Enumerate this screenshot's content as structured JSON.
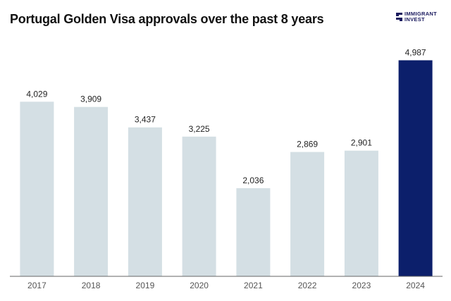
{
  "chart_data": {
    "type": "bar",
    "title": "Portugal Golden Visa approvals over the past 8 years",
    "xlabel": "",
    "ylabel": "",
    "categories": [
      "2017",
      "2018",
      "2019",
      "2020",
      "2021",
      "2022",
      "2023",
      "2024"
    ],
    "values": [
      4029,
      3909,
      3437,
      3225,
      2036,
      2869,
      2901,
      4987
    ],
    "value_labels": [
      "4,029",
      "3,909",
      "3,437",
      "3,225",
      "2,036",
      "2,869",
      "2,901",
      "4,987"
    ],
    "ylim": [
      0,
      5450
    ],
    "grid": false,
    "legend": "none",
    "colors": {
      "default_bar": "#d4dfe4",
      "highlight_bar": "#0c1f6b",
      "baseline": "#666666"
    },
    "highlight_category": "2024"
  },
  "brand": {
    "line1": "IMMIGRANT",
    "line2": "INVEST",
    "icon": "immigrant-invest-logo-icon",
    "color": "#1a1a5e"
  }
}
